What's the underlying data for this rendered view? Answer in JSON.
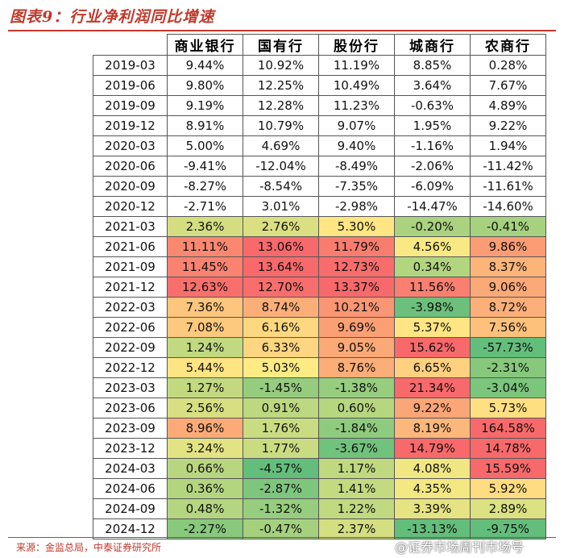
{
  "title": "图表9：行业净利润同比增速",
  "source": "来源：金监总局，中泰证券研究所",
  "watermark": "@证券市场周刊市场号",
  "chart_data": {
    "type": "table",
    "columns": [
      "商业银行",
      "国有行",
      "股份行",
      "城商行",
      "农商行"
    ],
    "rows": [
      {
        "period": "2019-03",
        "values": [
          "9.44%",
          "10.92%",
          "11.19%",
          "8.85%",
          "0.28%"
        ]
      },
      {
        "period": "2019-06",
        "values": [
          "9.80%",
          "12.25%",
          "10.49%",
          "3.64%",
          "7.67%"
        ]
      },
      {
        "period": "2019-09",
        "values": [
          "9.19%",
          "12.28%",
          "11.23%",
          "-0.63%",
          "4.89%"
        ]
      },
      {
        "period": "2019-12",
        "values": [
          "8.91%",
          "10.79%",
          "9.07%",
          "1.95%",
          "9.22%"
        ]
      },
      {
        "period": "2020-03",
        "values": [
          "5.00%",
          "4.69%",
          "9.40%",
          "-1.16%",
          "1.94%"
        ]
      },
      {
        "period": "2020-06",
        "values": [
          "-9.41%",
          "-12.04%",
          "-8.49%",
          "-2.06%",
          "-11.42%"
        ]
      },
      {
        "period": "2020-09",
        "values": [
          "-8.27%",
          "-8.54%",
          "-7.35%",
          "-6.09%",
          "-11.61%"
        ]
      },
      {
        "period": "2020-12",
        "values": [
          "-2.71%",
          "3.01%",
          "-2.98%",
          "-14.47%",
          "-14.60%"
        ]
      },
      {
        "period": "2021-03",
        "values": [
          "2.36%",
          "2.76%",
          "5.30%",
          "-0.20%",
          "-0.41%"
        ]
      },
      {
        "period": "2021-06",
        "values": [
          "11.11%",
          "13.06%",
          "11.79%",
          "4.56%",
          "9.86%"
        ]
      },
      {
        "period": "2021-09",
        "values": [
          "11.45%",
          "13.64%",
          "12.73%",
          "0.34%",
          "8.37%"
        ]
      },
      {
        "period": "2021-12",
        "values": [
          "12.63%",
          "12.70%",
          "13.37%",
          "11.56%",
          "9.06%"
        ]
      },
      {
        "period": "2022-03",
        "values": [
          "7.36%",
          "8.74%",
          "10.21%",
          "-3.98%",
          "8.72%"
        ]
      },
      {
        "period": "2022-06",
        "values": [
          "7.08%",
          "6.16%",
          "9.69%",
          "5.37%",
          "7.56%"
        ]
      },
      {
        "period": "2022-09",
        "values": [
          "1.24%",
          "6.33%",
          "9.05%",
          "15.62%",
          "-57.73%"
        ]
      },
      {
        "period": "2022-12",
        "values": [
          "5.44%",
          "5.03%",
          "8.76%",
          "6.65%",
          "-2.31%"
        ]
      },
      {
        "period": "2023-03",
        "values": [
          "1.27%",
          "-1.45%",
          "-1.38%",
          "21.34%",
          "-3.04%"
        ]
      },
      {
        "period": "2023-06",
        "values": [
          "2.56%",
          "0.91%",
          "0.60%",
          "9.22%",
          "5.73%"
        ]
      },
      {
        "period": "2023-09",
        "values": [
          "8.96%",
          "1.76%",
          "-1.84%",
          "8.19%",
          "164.58%"
        ]
      },
      {
        "period": "2023-12",
        "values": [
          "3.24%",
          "1.77%",
          "-3.67%",
          "14.79%",
          "14.78%"
        ]
      },
      {
        "period": "2024-03",
        "values": [
          "0.66%",
          "-4.57%",
          "1.17%",
          "4.08%",
          "15.59%"
        ]
      },
      {
        "period": "2024-06",
        "values": [
          "0.36%",
          "-2.87%",
          "1.41%",
          "4.35%",
          "5.92%"
        ]
      },
      {
        "period": "2024-09",
        "values": [
          "0.48%",
          "-1.32%",
          "1.22%",
          "3.39%",
          "2.89%"
        ]
      },
      {
        "period": "2024-12",
        "values": [
          "-2.27%",
          "-0.47%",
          "2.37%",
          "-13.13%",
          "-9.75%"
        ]
      }
    ],
    "heatmap_start_period": "2021-03",
    "heatmap_colors": {
      "low": "#63be7b",
      "mid": "#ffeb84",
      "high": "#f8696b"
    }
  }
}
